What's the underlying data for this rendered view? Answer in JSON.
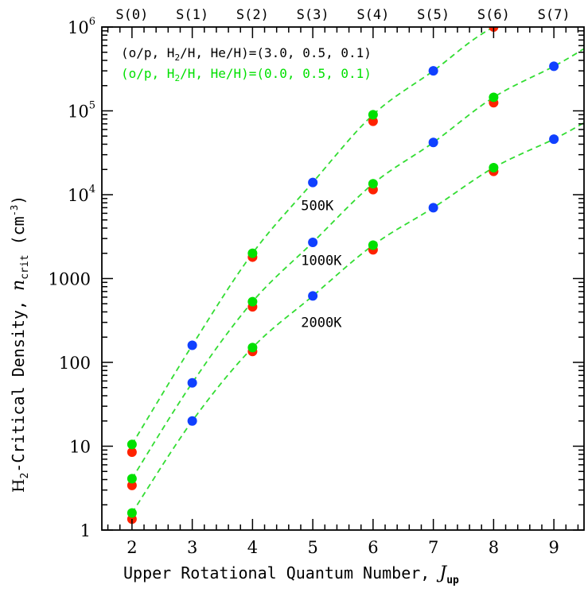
{
  "chart_data": {
    "type": "scatter",
    "xlabel": "Upper Rotational Quantum Number, ",
    "xlabel_var": "J",
    "xlabel_sub": "up",
    "ylabel_pre": "H",
    "ylabel_pre_sub": "2",
    "ylabel_mid": "-Critical Density, ",
    "ylabel_var": "n",
    "ylabel_var_sub": "crit",
    "ylabel_unit": " (cm",
    "ylabel_unit_sup": "-3",
    "ylabel_unit_end": ")",
    "x_ticks": [
      2,
      3,
      4,
      5,
      6,
      7,
      8,
      9
    ],
    "xlim": [
      1.5,
      9.5
    ],
    "yscale": "log",
    "ylim": [
      1,
      1000000
    ],
    "y_tick_labels": [
      {
        "value": 1,
        "label": "1"
      },
      {
        "value": 10,
        "label": "10"
      },
      {
        "value": 100,
        "label": "100"
      },
      {
        "value": 1000,
        "label": "1000"
      },
      {
        "value": 10000,
        "label": "10",
        "sup": "4"
      },
      {
        "value": 100000,
        "label": "10",
        "sup": "5"
      },
      {
        "value": 1000000,
        "label": "10",
        "sup": "6"
      }
    ],
    "top_axis": {
      "labels": [
        "S(0)",
        "S(1)",
        "S(2)",
        "S(3)",
        "S(4)",
        "S(5)",
        "S(6)",
        "S(7)"
      ],
      "positions": [
        2,
        3,
        4,
        5,
        6,
        7,
        8,
        9
      ]
    },
    "legend": [
      {
        "pre": "(o/p, H",
        "sub": "2",
        "post": "/H, He/H)=(3.0, 0.5, 0.1)",
        "color": "#000000"
      },
      {
        "pre": "(o/p, H",
        "sub": "2",
        "post": "/H, He/H)=(0.0, 0.5, 0.1)",
        "color": "#00e000"
      }
    ],
    "annotations": [
      {
        "text": "500K",
        "x": 5.2,
        "y": 6500
      },
      {
        "text": "1000K",
        "x": 5.2,
        "y": 1450
      },
      {
        "text": "2000K",
        "x": 5.2,
        "y": 265
      }
    ],
    "series": [
      {
        "name": "500K",
        "curve_x": [
          2,
          3,
          4,
          5,
          6,
          7,
          8,
          9.5
        ],
        "curve_y": [
          10.5,
          160,
          2000,
          14000,
          90000,
          300000,
          1000000,
          2800000
        ],
        "points": [
          {
            "x": 2,
            "y": 8.5,
            "color": "#ff2200"
          },
          {
            "x": 2,
            "y": 10.5,
            "color": "#00e000"
          },
          {
            "x": 3,
            "y": 160,
            "color": "#1040ff"
          },
          {
            "x": 4,
            "y": 1800,
            "color": "#ff2200"
          },
          {
            "x": 4,
            "y": 2000,
            "color": "#00e000"
          },
          {
            "x": 5,
            "y": 14000,
            "color": "#1040ff"
          },
          {
            "x": 6,
            "y": 75000,
            "color": "#ff2200"
          },
          {
            "x": 6,
            "y": 90000,
            "color": "#00e000"
          },
          {
            "x": 7,
            "y": 300000,
            "color": "#1040ff"
          },
          {
            "x": 8,
            "y": 1000000,
            "color": "#ff2200"
          }
        ]
      },
      {
        "name": "1000K",
        "curve_x": [
          2,
          3,
          4,
          5,
          6,
          7,
          8,
          9,
          9.5
        ],
        "curve_y": [
          4.1,
          57,
          530,
          2700,
          13500,
          42000,
          145000,
          340000,
          550000
        ],
        "points": [
          {
            "x": 2,
            "y": 3.4,
            "color": "#ff2200"
          },
          {
            "x": 2,
            "y": 4.1,
            "color": "#00e000"
          },
          {
            "x": 3,
            "y": 57,
            "color": "#1040ff"
          },
          {
            "x": 4,
            "y": 460,
            "color": "#ff2200"
          },
          {
            "x": 4,
            "y": 530,
            "color": "#00e000"
          },
          {
            "x": 5,
            "y": 2700,
            "color": "#1040ff"
          },
          {
            "x": 6,
            "y": 11500,
            "color": "#ff2200"
          },
          {
            "x": 6,
            "y": 13500,
            "color": "#00e000"
          },
          {
            "x": 7,
            "y": 42000,
            "color": "#1040ff"
          },
          {
            "x": 8,
            "y": 125000,
            "color": "#ff2200"
          },
          {
            "x": 8,
            "y": 145000,
            "color": "#00e000"
          },
          {
            "x": 9,
            "y": 340000,
            "color": "#1040ff"
          }
        ]
      },
      {
        "name": "2000K",
        "curve_x": [
          2,
          3,
          4,
          5,
          6,
          7,
          8,
          9,
          9.5
        ],
        "curve_y": [
          1.6,
          20,
          150,
          620,
          2500,
          7000,
          21000,
          46000,
          72000
        ],
        "points": [
          {
            "x": 2,
            "y": 1.35,
            "color": "#ff2200"
          },
          {
            "x": 2,
            "y": 1.6,
            "color": "#00e000"
          },
          {
            "x": 3,
            "y": 20,
            "color": "#1040ff"
          },
          {
            "x": 4,
            "y": 135,
            "color": "#ff2200"
          },
          {
            "x": 4,
            "y": 150,
            "color": "#00e000"
          },
          {
            "x": 5,
            "y": 620,
            "color": "#1040ff"
          },
          {
            "x": 6,
            "y": 2200,
            "color": "#ff2200"
          },
          {
            "x": 6,
            "y": 2500,
            "color": "#00e000"
          },
          {
            "x": 7,
            "y": 7000,
            "color": "#1040ff"
          },
          {
            "x": 8,
            "y": 19000,
            "color": "#ff2200"
          },
          {
            "x": 8,
            "y": 21000,
            "color": "#00e000"
          },
          {
            "x": 9,
            "y": 46000,
            "color": "#1040ff"
          }
        ]
      }
    ],
    "curve_color": "#33dd33"
  }
}
